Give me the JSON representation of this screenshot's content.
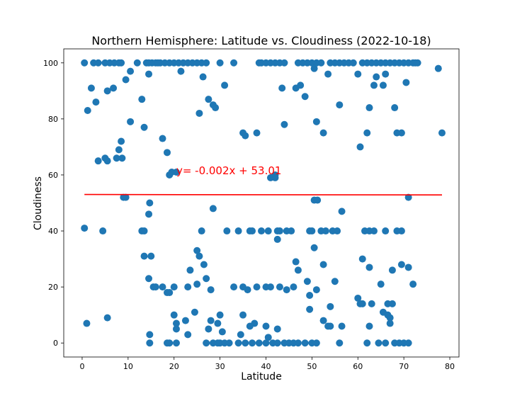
{
  "chart_data": {
    "type": "scatter",
    "title": "Northern Hemisphere: Latitude vs. Cloudiness (2022-10-18)",
    "xlabel": "Latitude",
    "ylabel": "Cloudiness",
    "xlim": [
      -4,
      82
    ],
    "ylim": [
      -5,
      105
    ],
    "xticks": [
      0,
      10,
      20,
      30,
      40,
      50,
      60,
      70,
      80
    ],
    "yticks": [
      0,
      20,
      40,
      60,
      80,
      100
    ],
    "grid": false,
    "colors": {
      "points": "#1f77b4",
      "regression": "#ff0000"
    },
    "regression": {
      "equation": "y= -0.002x + 53.01",
      "slope": -0.002,
      "intercept": 53.01,
      "x_range": [
        0.5,
        78.3
      ],
      "label_x": 20.5,
      "label_y": 60.3
    },
    "series": [
      {
        "x": [
          0.5,
          2.5,
          3.5,
          5,
          6,
          7,
          8,
          8.5,
          10.5,
          12,
          14,
          14.5,
          15.2,
          16,
          16.5,
          17,
          18,
          19,
          20,
          21,
          22,
          23,
          24,
          25,
          26,
          27,
          30,
          33,
          38.5,
          39,
          40,
          41,
          42,
          43,
          44,
          47,
          48,
          49,
          50,
          51,
          52,
          54,
          55,
          56,
          57,
          58,
          59,
          61,
          62,
          63,
          64,
          65,
          66,
          67,
          68,
          69,
          70,
          71,
          72,
          73,
          77.5,
          1.2,
          2,
          3,
          5.5,
          6.8,
          8.5,
          9.5,
          10.5,
          13,
          13.5,
          14.5,
          17.5,
          18.5,
          21.5,
          25.5,
          26.3,
          27.5,
          28.5,
          29,
          31,
          35,
          35.5,
          38,
          42,
          43.5,
          44,
          46.5,
          47.5,
          48.5,
          50.5,
          51,
          52.5,
          53.5,
          56,
          60,
          60.5,
          62,
          62.5,
          63.5,
          64,
          65.5,
          66,
          68,
          68.5,
          69.5,
          70.5,
          72.5,
          78.3,
          3.5,
          5,
          5.5,
          7.5,
          8,
          8.7,
          9,
          19,
          19.5,
          20.5,
          41,
          42,
          9.5,
          14.5,
          14.7,
          28.5,
          50.5,
          51.2,
          56.5,
          71,
          0.5,
          4.5,
          13,
          13.5,
          26,
          31.5,
          34,
          36.5,
          37,
          39,
          40.5,
          42.5,
          43,
          44.5,
          45.5,
          49.5,
          50,
          52,
          53,
          54.5,
          55.5,
          61.5,
          62.5,
          63.5,
          66,
          69.5,
          13.5,
          15,
          25,
          25.5,
          26.5,
          27,
          42.5,
          46.5,
          50.5,
          52.5,
          61,
          67.5,
          69.5,
          14.5,
          15.5,
          16,
          17.5,
          18.5,
          19,
          20,
          23,
          23.5,
          25,
          28,
          33,
          35,
          36,
          38,
          40,
          41,
          43,
          44.5,
          46,
          47,
          49,
          49.5,
          51,
          53.5,
          55,
          60,
          61,
          62.5,
          65,
          66.5,
          67.5,
          68.5,
          71,
          72,
          20,
          20.5,
          24.5,
          30,
          35,
          37.5,
          40,
          49.5,
          54,
          60.5,
          63,
          65.5,
          67,
          1,
          5.5,
          14.7,
          20.5,
          22.5,
          27.5,
          28,
          29.5,
          30.5,
          34.5,
          36.5,
          40.5,
          42.5,
          52.5,
          54,
          56.5,
          62.5,
          66.5,
          67,
          14.7,
          18.5,
          19,
          20.5,
          23,
          27,
          28.5,
          29.5,
          30,
          31,
          32,
          34,
          35.5,
          37,
          38.5,
          40,
          41.5,
          42.5,
          44,
          45,
          46,
          47,
          48.5,
          50,
          51,
          56,
          62,
          64.5,
          66,
          68,
          69,
          70,
          71
        ],
        "y": [
          100,
          100,
          100,
          100,
          100,
          100,
          100,
          100,
          97,
          100,
          100,
          100,
          100,
          100,
          100,
          100,
          100,
          100,
          100,
          100,
          100,
          100,
          100,
          100,
          100,
          100,
          100,
          100,
          100,
          100,
          100,
          100,
          100,
          100,
          100,
          100,
          100,
          100,
          100,
          100,
          100,
          100,
          100,
          100,
          100,
          100,
          100,
          100,
          100,
          100,
          100,
          100,
          100,
          100,
          100,
          100,
          100,
          100,
          100,
          100,
          98,
          83,
          91,
          86,
          90,
          91,
          72,
          94,
          79,
          87,
          77,
          96,
          73,
          68,
          97,
          82,
          95,
          87,
          85,
          84,
          92,
          75,
          74,
          75,
          59,
          91,
          78,
          91,
          92,
          88,
          98,
          79,
          75,
          96,
          85,
          96,
          70,
          75,
          84,
          92,
          95,
          92,
          96,
          84,
          75,
          75,
          93,
          100,
          75,
          65,
          66,
          65,
          66,
          69,
          66,
          52,
          60,
          61,
          61,
          59,
          60,
          52,
          46,
          50,
          48,
          51,
          51,
          47,
          52,
          41,
          40,
          40,
          40,
          40,
          40,
          40,
          40,
          40,
          40,
          40,
          40,
          40,
          40,
          40,
          40,
          40,
          40,
          40,
          40,
          40,
          40,
          40,
          40,
          40,
          40,
          31,
          31,
          33,
          31,
          28,
          23,
          37,
          29,
          34,
          28,
          30,
          14,
          28,
          23,
          20,
          20,
          20,
          18,
          18,
          20,
          20,
          26,
          21,
          19,
          20,
          20,
          19,
          20,
          20,
          20,
          20,
          19,
          20,
          26,
          22,
          17,
          19,
          6,
          22,
          16,
          14,
          27,
          21,
          14,
          26,
          40,
          27,
          21,
          10,
          5,
          11,
          10,
          10,
          7,
          6,
          12,
          13,
          14,
          14,
          11,
          9,
          7,
          9,
          3,
          7,
          8,
          5,
          8,
          7,
          4,
          3,
          6,
          2,
          5,
          8,
          6,
          6,
          6,
          10,
          7,
          0,
          0,
          0,
          0,
          3,
          0,
          0,
          0,
          0,
          0,
          0,
          0,
          0,
          0,
          0,
          0,
          0,
          0,
          0,
          0,
          0,
          0,
          0,
          0,
          0,
          0,
          0,
          0,
          0,
          0,
          0,
          0,
          0
        ]
      }
    ]
  }
}
